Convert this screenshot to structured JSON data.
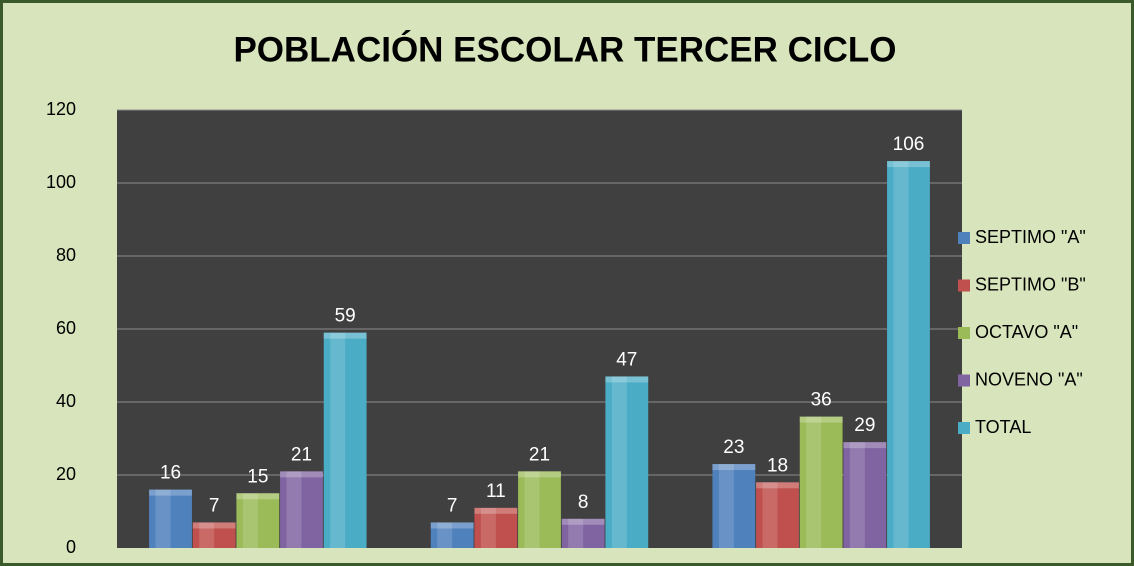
{
  "chart_data": {
    "type": "bar",
    "title": "POBLACIÓN ESCOLAR TERCER CICLO",
    "categories": [
      null,
      null,
      null
    ],
    "series": [
      {
        "name": "SEPTIMO \"A\"",
        "color": "#4f81bd",
        "values": [
          16,
          7,
          23
        ]
      },
      {
        "name": "SEPTIMO \"B\"",
        "color": "#c0504d",
        "values": [
          7,
          11,
          18
        ]
      },
      {
        "name": "OCTAVO \"A\"",
        "color": "#9bbb59",
        "values": [
          15,
          21,
          36
        ]
      },
      {
        "name": "NOVENO \"A\"",
        "color": "#8064a2",
        "values": [
          21,
          8,
          29
        ]
      },
      {
        "name": "TOTAL",
        "color": "#4bacc6",
        "values": [
          59,
          47,
          106
        ]
      }
    ],
    "ylim": [
      0,
      120
    ],
    "yticks": [
      0,
      20,
      40,
      60,
      80,
      100,
      120
    ],
    "grid": true,
    "legend": "right"
  }
}
